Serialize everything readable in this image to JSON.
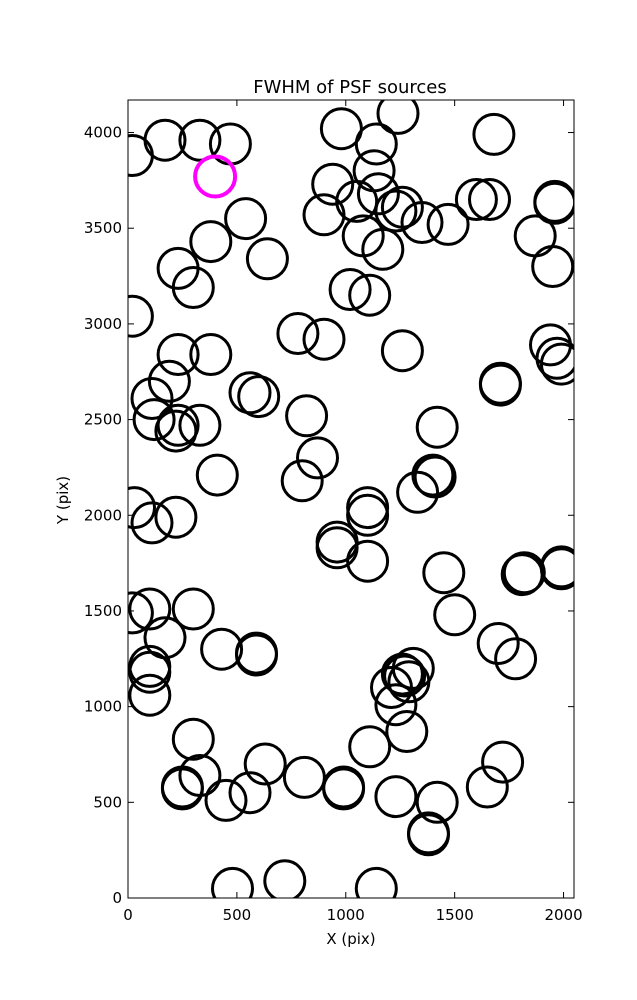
{
  "chart_data": {
    "type": "scatter",
    "title": "FWHM of PSF sources",
    "xlabel": "X (pix)",
    "ylabel": "Y (pix)",
    "xlim": [
      0,
      2048
    ],
    "ylim": [
      0,
      4170
    ],
    "xticks": [
      0,
      500,
      1000,
      1500,
      2000
    ],
    "xtick_labels": [
      "0",
      "500",
      "1000",
      "1500",
      "2000"
    ],
    "yticks": [
      0,
      500,
      1000,
      1500,
      2000,
      2500,
      3000,
      3500,
      4000
    ],
    "ytick_labels": [
      "0",
      "500",
      "1000",
      "1500",
      "2000",
      "2500",
      "3000",
      "3500",
      "4000"
    ],
    "grid": false,
    "marker": "open circle",
    "series": [
      {
        "color": "#000000",
        "points": [
          [
            20,
            3880
          ],
          [
            170,
            3960
          ],
          [
            330,
            3960
          ],
          [
            470,
            3940
          ],
          [
            540,
            3550
          ],
          [
            380,
            3430
          ],
          [
            230,
            3290
          ],
          [
            300,
            3190
          ],
          [
            640,
            3340
          ],
          [
            20,
            3040
          ],
          [
            110,
            2610
          ],
          [
            190,
            2700
          ],
          [
            230,
            2840
          ],
          [
            380,
            2840
          ],
          [
            120,
            2500
          ],
          [
            230,
            2470
          ],
          [
            220,
            2440
          ],
          [
            330,
            2470
          ],
          [
            560,
            2640
          ],
          [
            600,
            2620
          ],
          [
            780,
            2950
          ],
          [
            900,
            2920
          ],
          [
            820,
            2520
          ],
          [
            870,
            2300
          ],
          [
            800,
            2180
          ],
          [
            410,
            2210
          ],
          [
            30,
            2040
          ],
          [
            110,
            1960
          ],
          [
            220,
            1990
          ],
          [
            20,
            1490
          ],
          [
            100,
            1510
          ],
          [
            170,
            1360
          ],
          [
            300,
            1510
          ],
          [
            100,
            1210
          ],
          [
            100,
            1180
          ],
          [
            100,
            1060
          ],
          [
            430,
            1300
          ],
          [
            590,
            1280
          ],
          [
            590,
            1270
          ],
          [
            300,
            830
          ],
          [
            330,
            640
          ],
          [
            250,
            580
          ],
          [
            250,
            570
          ],
          [
            450,
            510
          ],
          [
            560,
            550
          ],
          [
            630,
            700
          ],
          [
            480,
            50
          ],
          [
            720,
            90
          ],
          [
            810,
            630
          ],
          [
            990,
            580
          ],
          [
            990,
            570
          ],
          [
            1140,
            50
          ],
          [
            1110,
            790
          ],
          [
            1230,
            530
          ],
          [
            1210,
            1100
          ],
          [
            1230,
            1010
          ],
          [
            1260,
            1170
          ],
          [
            1270,
            1160
          ],
          [
            1290,
            1130
          ],
          [
            1310,
            1200
          ],
          [
            1280,
            870
          ],
          [
            1420,
            500
          ],
          [
            1380,
            340
          ],
          [
            1380,
            330
          ],
          [
            1650,
            580
          ],
          [
            1720,
            710
          ],
          [
            1700,
            1330
          ],
          [
            1780,
            1250
          ],
          [
            1820,
            1700
          ],
          [
            1810,
            1690
          ],
          [
            1990,
            1730
          ],
          [
            1990,
            1720
          ],
          [
            1500,
            1480
          ],
          [
            1450,
            1700
          ],
          [
            1100,
            1760
          ],
          [
            960,
            1860
          ],
          [
            960,
            1830
          ],
          [
            1100,
            2040
          ],
          [
            1100,
            2000
          ],
          [
            1330,
            2120
          ],
          [
            1400,
            2210
          ],
          [
            1410,
            2200
          ],
          [
            1420,
            2460
          ],
          [
            1260,
            2860
          ],
          [
            1710,
            2690
          ],
          [
            1710,
            2680
          ],
          [
            1940,
            2890
          ],
          [
            1970,
            2820
          ],
          [
            1990,
            2790
          ],
          [
            1950,
            3300
          ],
          [
            1870,
            3460
          ],
          [
            1960,
            3640
          ],
          [
            1960,
            3630
          ],
          [
            1660,
            3650
          ],
          [
            1600,
            3650
          ],
          [
            1470,
            3520
          ],
          [
            1350,
            3530
          ],
          [
            1260,
            3610
          ],
          [
            1230,
            3590
          ],
          [
            1170,
            3390
          ],
          [
            1150,
            3680
          ],
          [
            1130,
            3800
          ],
          [
            1140,
            3940
          ],
          [
            1240,
            4100
          ],
          [
            1050,
            3640
          ],
          [
            940,
            3730
          ],
          [
            900,
            3570
          ],
          [
            1080,
            3460
          ],
          [
            1020,
            3180
          ],
          [
            1110,
            3150
          ],
          [
            980,
            4020
          ],
          [
            1680,
            3990
          ]
        ]
      },
      {
        "color": "#ff00ff",
        "points": [
          [
            400,
            3770
          ]
        ]
      }
    ]
  }
}
